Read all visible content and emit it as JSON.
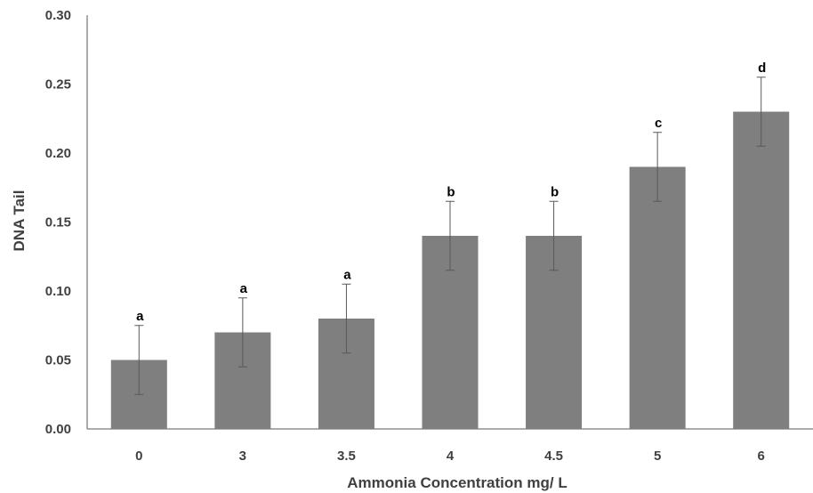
{
  "chart_data": {
    "type": "bar",
    "title": "",
    "xlabel": "Ammonia Concentration mg/ L",
    "ylabel": "DNA Tail",
    "categories": [
      "0",
      "3",
      "3.5",
      "4",
      "4.5",
      "5",
      "6"
    ],
    "values": [
      0.05,
      0.07,
      0.08,
      0.14,
      0.14,
      0.19,
      0.23
    ],
    "errors": [
      0.025,
      0.025,
      0.025,
      0.025,
      0.025,
      0.025,
      0.025
    ],
    "significance_labels": [
      "a",
      "a",
      "a",
      "b",
      "b",
      "c",
      "d"
    ],
    "ylim": [
      0,
      0.3
    ],
    "yticks": [
      "0.00",
      "0.05",
      "0.10",
      "0.15",
      "0.20",
      "0.25",
      "0.30"
    ],
    "grid": false,
    "legend": "none",
    "colors": {
      "bar": "#7f7f7f",
      "axis": "#595959",
      "text": "#404040",
      "error_bar": "#595959"
    }
  }
}
